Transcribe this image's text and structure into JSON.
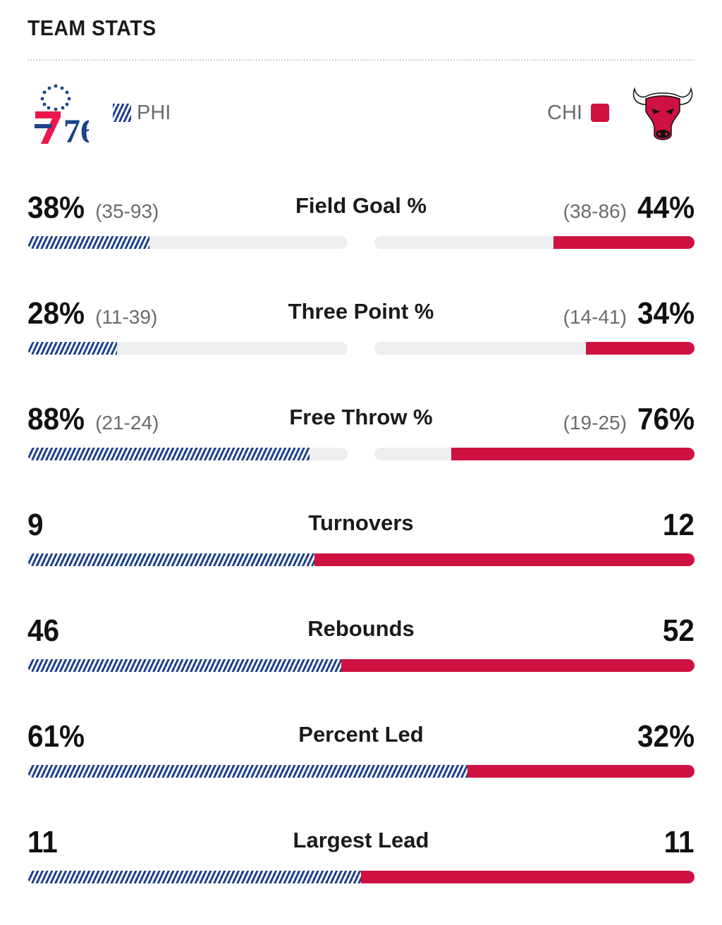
{
  "header": {
    "title": "TEAM STATS"
  },
  "teams": {
    "home": {
      "abbr": "PHI",
      "color": "#1d428a",
      "accent": "#ed174c",
      "logo_text": "76"
    },
    "away": {
      "abbr": "CHI",
      "color": "#ce1141"
    }
  },
  "stats": {
    "fg": {
      "label": "Field Goal %",
      "phi_value": "38%",
      "phi_made": "(35-93)",
      "chi_value": "44%",
      "chi_made": "(38-86)",
      "phi_share": 0.38,
      "chi_share": 0.44
    },
    "tp": {
      "label": "Three Point %",
      "phi_value": "28%",
      "phi_made": "(11-39)",
      "chi_value": "34%",
      "chi_made": "(14-41)",
      "phi_share": 0.28,
      "chi_share": 0.34
    },
    "ft": {
      "label": "Free Throw %",
      "phi_value": "88%",
      "phi_made": "(21-24)",
      "chi_value": "76%",
      "chi_made": "(19-25)",
      "phi_share": 0.88,
      "chi_share": 0.76
    },
    "to": {
      "label": "Turnovers",
      "phi_value": "9",
      "chi_value": "12",
      "phi_share": 0.43
    },
    "reb": {
      "label": "Rebounds",
      "phi_value": "46",
      "chi_value": "52",
      "phi_share": 0.47
    },
    "pl": {
      "label": "Percent Led",
      "phi_value": "61%",
      "chi_value": "32%",
      "phi_share": 0.66
    },
    "ll": {
      "label": "Largest Lead",
      "phi_value": "11",
      "chi_value": "11",
      "phi_share": 0.5
    }
  }
}
